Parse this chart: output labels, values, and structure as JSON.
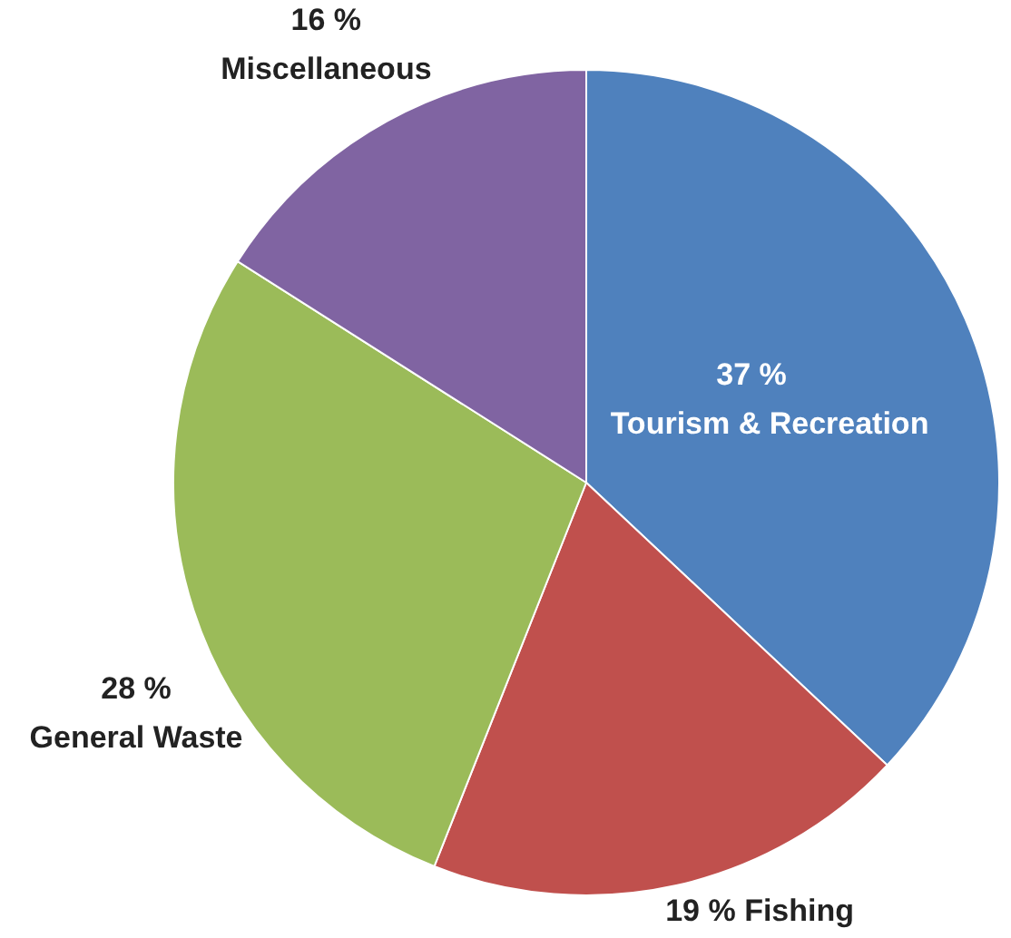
{
  "chart_data": {
    "type": "pie",
    "categories": [
      "Tourism & Recreation",
      "Fishing",
      "General Waste",
      "Miscellaneous"
    ],
    "values": [
      37,
      19,
      28,
      16
    ],
    "colors": [
      "#4f81bd",
      "#c0504d",
      "#9bbb59",
      "#8064a2"
    ],
    "value_labels": [
      "37 %",
      "19 %",
      "28 %",
      "16 %"
    ],
    "legend": false
  }
}
